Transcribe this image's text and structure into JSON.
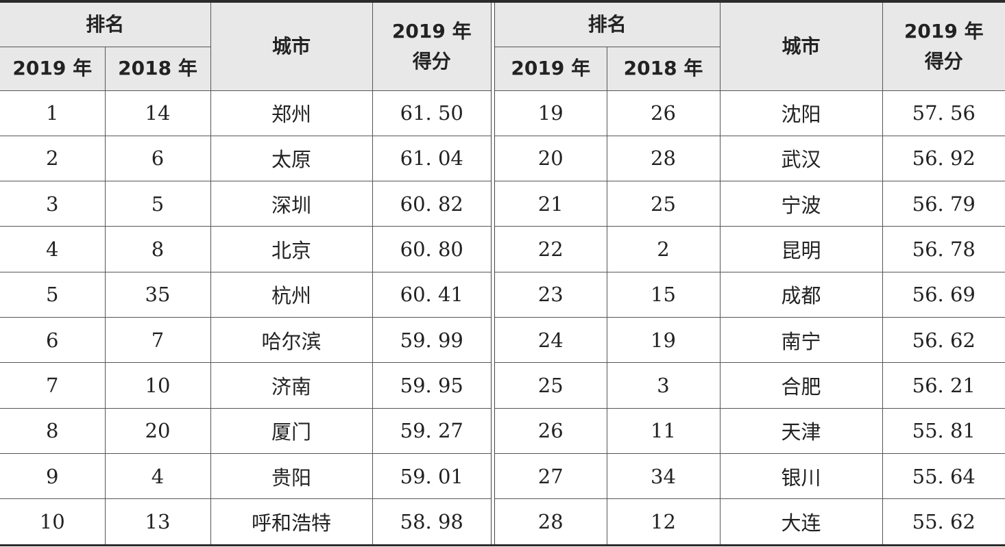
{
  "headers": {
    "rank": "排名",
    "y2019": "2019 年",
    "y2018": "2018 年",
    "city": "城市",
    "score_line1": "2019 年",
    "score_line2": "得分"
  },
  "left_rows": [
    {
      "r2019": "1",
      "r2018": "14",
      "city": "郑州",
      "score": "61. 50"
    },
    {
      "r2019": "2",
      "r2018": "6",
      "city": "太原",
      "score": "61. 04"
    },
    {
      "r2019": "3",
      "r2018": "5",
      "city": "深圳",
      "score": "60. 82"
    },
    {
      "r2019": "4",
      "r2018": "8",
      "city": "北京",
      "score": "60. 80"
    },
    {
      "r2019": "5",
      "r2018": "35",
      "city": "杭州",
      "score": "60. 41"
    },
    {
      "r2019": "6",
      "r2018": "7",
      "city": "哈尔滨",
      "score": "59. 99"
    },
    {
      "r2019": "7",
      "r2018": "10",
      "city": "济南",
      "score": "59. 95"
    },
    {
      "r2019": "8",
      "r2018": "20",
      "city": "厦门",
      "score": "59. 27"
    },
    {
      "r2019": "9",
      "r2018": "4",
      "city": "贵阳",
      "score": "59. 01"
    },
    {
      "r2019": "10",
      "r2018": "13",
      "city": "呼和浩特",
      "score": "58. 98"
    }
  ],
  "right_rows": [
    {
      "r2019": "19",
      "r2018": "26",
      "city": "沈阳",
      "score": "57. 56"
    },
    {
      "r2019": "20",
      "r2018": "28",
      "city": "武汉",
      "score": "56. 92"
    },
    {
      "r2019": "21",
      "r2018": "25",
      "city": "宁波",
      "score": "56. 79"
    },
    {
      "r2019": "22",
      "r2018": "2",
      "city": "昆明",
      "score": "56. 78"
    },
    {
      "r2019": "23",
      "r2018": "15",
      "city": "成都",
      "score": "56. 69"
    },
    {
      "r2019": "24",
      "r2018": "19",
      "city": "南宁",
      "score": "56. 62"
    },
    {
      "r2019": "25",
      "r2018": "3",
      "city": "合肥",
      "score": "56. 21"
    },
    {
      "r2019": "26",
      "r2018": "11",
      "city": "天津",
      "score": "55. 81"
    },
    {
      "r2019": "27",
      "r2018": "34",
      "city": "银川",
      "score": "55. 64"
    },
    {
      "r2019": "28",
      "r2018": "12",
      "city": "大连",
      "score": "55. 62"
    }
  ]
}
